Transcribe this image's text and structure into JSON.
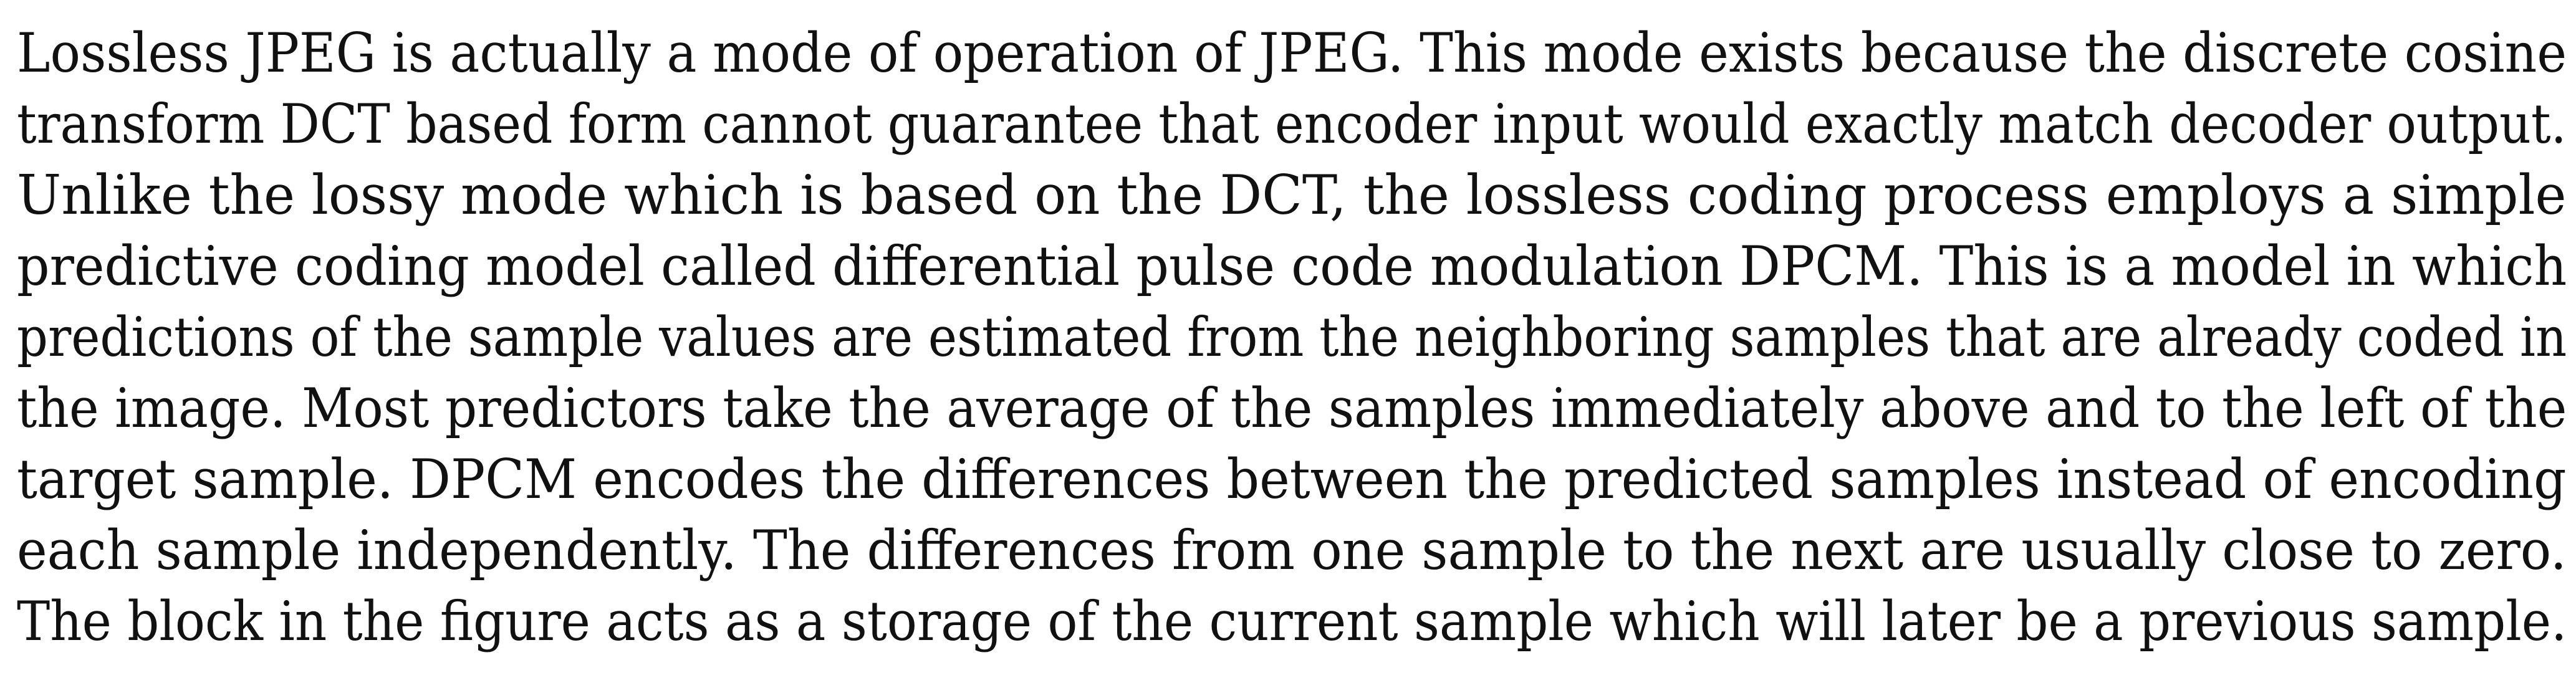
{
  "document": {
    "lines": [
      "Lossless JPEG is actually a mode of operation of JPEG. This mode exists because the discrete cosine",
      "transform DCT based form cannot guarantee that encoder input would exactly match decoder output.",
      "Unlike the lossy mode which is based on the DCT, the lossless coding process employs a simple",
      "predictive coding model called differential pulse code modulation DPCM. This is a model in which",
      "predictions of the sample values are estimated from the neighboring samples that are already coded in",
      "the image. Most predictors take the average of the samples immediately above and to the left of the",
      "target sample. DPCM encodes the differences between the predicted samples instead of encoding",
      "each sample independently. The differences from one sample to the next are usually close to zero.",
      "The block in the figure acts as a storage of the current sample which will later be a previous sample."
    ]
  }
}
